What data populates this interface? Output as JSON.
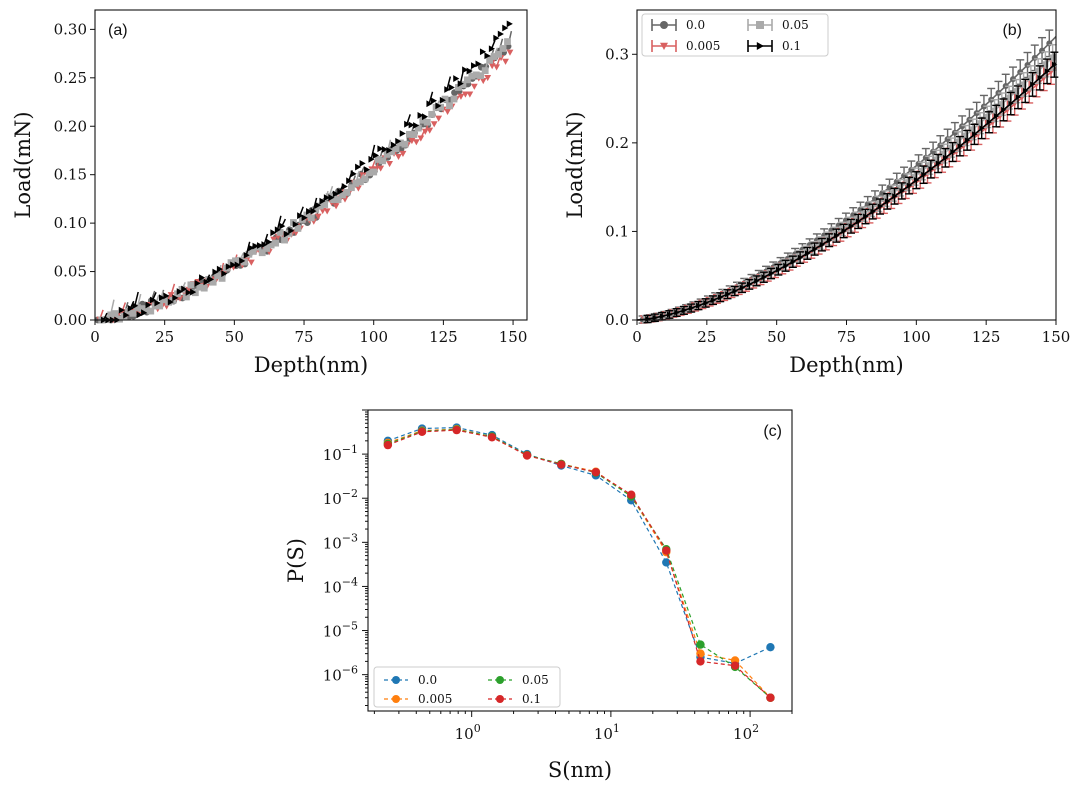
{
  "chart_data": [
    {
      "panel_label": "(a)",
      "type": "scatter",
      "xlabel": "Depth(nm)",
      "ylabel": "Load(mN)",
      "xlim": [
        0,
        155
      ],
      "ylim": [
        0,
        0.32
      ],
      "xticks": [
        0,
        25,
        50,
        75,
        100,
        125,
        150
      ],
      "yticks": [
        0.0,
        0.05,
        0.1,
        0.15,
        0.2,
        0.25,
        0.3
      ],
      "xtick_labels": [
        "0",
        "25",
        "50",
        "75",
        "100",
        "125",
        "150"
      ],
      "ytick_labels": [
        "0.00",
        "0.05",
        "0.10",
        "0.15",
        "0.20",
        "0.25",
        "0.30"
      ],
      "grid": false,
      "series": [
        {
          "name": "0.0",
          "color": "#666666",
          "marker": "circle",
          "load_at_150nm": 0.29
        },
        {
          "name": "0.005",
          "color": "#d96060",
          "marker": "triangle-down",
          "load_at_150nm": 0.28
        },
        {
          "name": "0.05",
          "color": "#aaaaaa",
          "marker": "square",
          "load_at_150nm": 0.29
        },
        {
          "name": "0.1",
          "color": "#000000",
          "marker": "triangle-right",
          "load_at_150nm": 0.305
        }
      ]
    },
    {
      "panel_label": "(b)",
      "type": "line",
      "xlabel": "Depth(nm)",
      "ylabel": "Load(mN)",
      "xlim": [
        0,
        150
      ],
      "ylim": [
        0,
        0.35
      ],
      "xticks": [
        0,
        25,
        50,
        75,
        100,
        125,
        150
      ],
      "yticks": [
        0.0,
        0.1,
        0.2,
        0.3
      ],
      "xtick_labels": [
        "0",
        "25",
        "50",
        "75",
        "100",
        "125",
        "150"
      ],
      "ytick_labels": [
        "0.0",
        "0.1",
        "0.2",
        "0.3"
      ],
      "grid": false,
      "legend_position": "top-left",
      "series": [
        {
          "name": "0.0",
          "color": "#666666",
          "marker": "circle",
          "load_at_150nm": 0.32
        },
        {
          "name": "0.005",
          "color": "#d96060",
          "marker": "triangle-down",
          "load_at_150nm": 0.285
        },
        {
          "name": "0.05",
          "color": "#aaaaaa",
          "marker": "square",
          "load_at_150nm": 0.3
        },
        {
          "name": "0.1",
          "color": "#000000",
          "marker": "triangle-right",
          "load_at_150nm": 0.29
        }
      ]
    },
    {
      "panel_label": "(c)",
      "type": "line",
      "xlabel": "S(nm)",
      "ylabel": "P(S)",
      "xscale": "log",
      "yscale": "log",
      "xlim": [
        0.18,
        200
      ],
      "ylim": [
        1.5e-07,
        1.0
      ],
      "xticks": [
        {
          "base": "10",
          "exp": "0",
          "value": 1
        },
        {
          "base": "10",
          "exp": "1",
          "value": 10
        },
        {
          "base": "10",
          "exp": "2",
          "value": 100
        }
      ],
      "yticks": [
        {
          "base": "10",
          "exp": "−1",
          "value": 0.1
        },
        {
          "base": "10",
          "exp": "−2",
          "value": 0.01
        },
        {
          "base": "10",
          "exp": "−3",
          "value": 0.001
        },
        {
          "base": "10",
          "exp": "−4",
          "value": 0.0001
        },
        {
          "base": "10",
          "exp": "−5",
          "value": 1e-05
        },
        {
          "base": "10",
          "exp": "−6",
          "value": 1e-06
        }
      ],
      "grid": false,
      "legend_position": "bottom-left",
      "x": [
        0.25,
        0.44,
        0.78,
        1.4,
        2.5,
        4.4,
        7.8,
        14,
        25,
        44,
        78,
        140
      ],
      "series": [
        {
          "name": "0.0",
          "color": "#1f77b4",
          "values": [
            0.2,
            0.38,
            0.4,
            0.27,
            0.1,
            0.055,
            0.033,
            0.009,
            0.00035,
            2.5e-06,
            1.8e-06,
            4.2e-06
          ]
        },
        {
          "name": "0.005",
          "color": "#ff7f0e",
          "values": [
            0.18,
            0.34,
            0.37,
            0.25,
            0.095,
            0.06,
            0.04,
            0.011,
            0.0006,
            3e-06,
            2.1e-06,
            3e-07
          ]
        },
        {
          "name": "0.05",
          "color": "#2ca02c",
          "values": [
            0.17,
            0.33,
            0.36,
            0.25,
            0.095,
            0.06,
            0.038,
            0.011,
            0.0007,
            4.8e-06,
            1.5e-06,
            3e-07
          ]
        },
        {
          "name": "0.1",
          "color": "#d62728",
          "values": [
            0.16,
            0.32,
            0.35,
            0.24,
            0.093,
            0.058,
            0.039,
            0.012,
            0.00065,
            2e-06,
            1.6e-06,
            3e-07
          ]
        }
      ]
    }
  ]
}
